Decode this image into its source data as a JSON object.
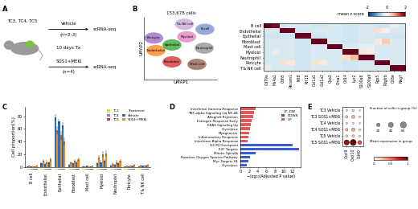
{
  "panel_labels": [
    "A",
    "B",
    "C",
    "D",
    "E"
  ],
  "diagram": {
    "models": "TC3, TC4, TC5",
    "arms": [
      {
        "treatment": "Vehicle",
        "n": "(n=2-3)",
        "readout": "scRNA-seq"
      },
      {
        "treatment": "SOS1+MEKi",
        "n": "(n=4)",
        "readout": "scRNA-seq"
      }
    ],
    "duration": "10 days Tx"
  },
  "chart_data": [
    {
      "type": "scatter",
      "title": "153,678 cells",
      "x_label": "UMAP1",
      "y_label": "UMAP2",
      "tick_labels": false,
      "xlim": [
        0,
        10
      ],
      "ylim": [
        0,
        10
      ],
      "clusters": [
        {
          "name": "T & NK cell",
          "color": "#c9a3d6",
          "x": 5.5,
          "y": 8.8
        },
        {
          "name": "B-cell",
          "color": "#6f8fc9",
          "x": 8.3,
          "y": 8.0
        },
        {
          "name": "Myeloid",
          "color": "#e377c2",
          "x": 5.8,
          "y": 6.8
        },
        {
          "name": "Neutrophil",
          "color": "#8c8c8c",
          "x": 8.2,
          "y": 5.0
        },
        {
          "name": "Mast cell",
          "color": "#8c564b",
          "x": 7.2,
          "y": 2.4
        },
        {
          "name": "Fibroblast",
          "color": "#d62728",
          "x": 3.8,
          "y": 2.8
        },
        {
          "name": "Endothelial",
          "color": "#ff7f0e",
          "x": 1.6,
          "y": 4.6
        },
        {
          "name": "Pericyte",
          "color": "#9467bd",
          "x": 1.3,
          "y": 6.6
        },
        {
          "name": "Epithelial",
          "color": "#2ca02c",
          "x": 3.8,
          "y": 5.5
        }
      ]
    },
    {
      "type": "heatmap",
      "rows": [
        "B cell",
        "Endothelial",
        "Epithelial",
        "Fibroblast",
        "Mast cell",
        "Myeloid",
        "Neutrophil",
        "Pericyte",
        "T & NK cell"
      ],
      "columns": [
        "Cd79a",
        "Ms4a1",
        "Cdh5",
        "Pecam1",
        "Krt8",
        "Krt18",
        "Col1a1",
        "Col1a2",
        "Cpa3",
        "Cma1",
        "Cd14",
        "Lyz2",
        "S100a8",
        "S100a9",
        "Rgs5",
        "Pdgfrb",
        "Cd3e",
        "Nkg7"
      ],
      "values": [
        [
          2.0,
          1.9,
          -0.4,
          -0.3,
          -0.3,
          -0.3,
          -0.4,
          -0.4,
          -0.3,
          -0.3,
          -0.4,
          -0.4,
          -0.3,
          -0.3,
          -0.4,
          -0.4,
          -0.2,
          -0.3
        ],
        [
          -0.3,
          -0.3,
          2.1,
          2.0,
          -0.4,
          -0.4,
          -0.3,
          -0.3,
          -0.3,
          -0.3,
          -0.4,
          -0.4,
          -0.3,
          -0.3,
          0.3,
          0.1,
          -0.3,
          -0.3
        ],
        [
          -0.4,
          -0.4,
          -0.4,
          -0.4,
          2.2,
          2.1,
          -0.4,
          -0.4,
          -0.3,
          -0.3,
          -0.4,
          -0.4,
          -0.3,
          -0.3,
          -0.4,
          -0.4,
          -0.4,
          -0.4
        ],
        [
          -0.3,
          -0.3,
          -0.3,
          -0.3,
          -0.4,
          -0.4,
          2.2,
          2.1,
          -0.3,
          -0.3,
          -0.4,
          -0.4,
          -0.3,
          -0.3,
          0.2,
          0.5,
          -0.3,
          -0.3
        ],
        [
          -0.3,
          -0.3,
          -0.3,
          -0.3,
          -0.4,
          -0.4,
          -0.3,
          -0.3,
          2.3,
          2.2,
          -0.3,
          -0.3,
          -0.2,
          -0.2,
          -0.3,
          -0.3,
          -0.3,
          -0.3
        ],
        [
          -0.3,
          -0.2,
          -0.3,
          -0.3,
          -0.4,
          -0.4,
          -0.3,
          -0.3,
          -0.3,
          -0.3,
          2.0,
          2.1,
          0.2,
          0.1,
          -0.3,
          -0.3,
          -0.3,
          -0.3
        ],
        [
          -0.3,
          -0.3,
          -0.3,
          -0.3,
          -0.4,
          -0.4,
          -0.3,
          -0.3,
          -0.3,
          -0.3,
          0.4,
          0.6,
          2.2,
          2.2,
          -0.3,
          -0.3,
          -0.3,
          -0.3
        ],
        [
          -0.3,
          -0.3,
          0.3,
          0.2,
          -0.4,
          -0.4,
          0.3,
          0.2,
          -0.3,
          -0.3,
          -0.4,
          -0.4,
          -0.3,
          -0.3,
          2.2,
          2.1,
          -0.3,
          -0.3
        ],
        [
          -0.2,
          -0.3,
          -0.3,
          -0.3,
          -0.4,
          -0.4,
          -0.3,
          -0.3,
          -0.3,
          -0.3,
          -0.4,
          -0.4,
          -0.3,
          -0.3,
          -0.3,
          -0.3,
          2.1,
          2.2
        ]
      ],
      "colorbar": {
        "label": "mean z score",
        "range": [
          -2,
          2
        ],
        "ticks": [
          -2,
          0,
          2
        ]
      }
    },
    {
      "type": "bar",
      "y_label": "Cell proportion(%)",
      "categories": [
        "B cell",
        "Endothelial",
        "Epithelial",
        "Fibroblast",
        "Mast cell",
        "Myeloid",
        "Neutrophil",
        "Pericyte",
        "T & NK cell"
      ],
      "ylim": [
        0,
        95
      ],
      "yticks": [
        0,
        20,
        40,
        60,
        80
      ],
      "legend": "upper right",
      "models": [
        {
          "name": "TC3",
          "color": "#e8d44d"
        },
        {
          "name": "TC4",
          "color": "#9a7fc0"
        },
        {
          "name": "TC5",
          "color": "#a0522d"
        }
      ],
      "treatments": {
        "title": "Treatment",
        "items": [
          {
            "name": "Vehicle",
            "color": "#2f6db5"
          },
          {
            "name": "SOS1+MEKi",
            "color": "#e8892a"
          }
        ]
      },
      "series": [
        {
          "model": "TC3",
          "treatment": "Vehicle",
          "values": [
            1.0,
            6,
            78,
            4,
            1.5,
            6,
            3,
            1.0,
            1.5
          ],
          "errors": [
            0.5,
            2,
            5,
            1,
            0.5,
            2,
            1,
            0.3,
            0.5
          ]
        },
        {
          "model": "TC3",
          "treatment": "SOS1+MEKi",
          "values": [
            2.0,
            10,
            58,
            7,
            1.0,
            15,
            5,
            2.0,
            2.5
          ],
          "errors": [
            1,
            3,
            6,
            2,
            0.5,
            4,
            2,
            0.8,
            1
          ]
        },
        {
          "model": "TC4",
          "treatment": "Vehicle",
          "values": [
            0.8,
            5,
            72,
            6,
            2.0,
            8,
            4,
            1.5,
            2.0
          ],
          "errors": [
            0.4,
            2,
            4,
            2,
            0.8,
            3,
            1,
            0.5,
            0.8
          ]
        },
        {
          "model": "TC4",
          "treatment": "SOS1+MEKi",
          "values": [
            1.5,
            8,
            50,
            10,
            1.5,
            20,
            8,
            3.0,
            3.0
          ],
          "errors": [
            0.6,
            3,
            7,
            3,
            0.6,
            5,
            3,
            1,
            1
          ]
        },
        {
          "model": "TC5",
          "treatment": "Vehicle",
          "values": [
            1.2,
            7,
            65,
            8,
            1.0,
            10,
            6,
            2.0,
            2.5
          ],
          "errors": [
            0.5,
            2,
            5,
            2,
            0.4,
            3,
            2,
            0.6,
            0.8
          ]
        },
        {
          "model": "TC5",
          "treatment": "SOS1+MEKi",
          "values": [
            3.0,
            12,
            40,
            12,
            2.0,
            22,
            10,
            3.5,
            4.0
          ],
          "errors": [
            1,
            3,
            6,
            3,
            0.8,
            5,
            3,
            1,
            1.2
          ]
        }
      ]
    },
    {
      "type": "bar",
      "orientation": "horizontal",
      "x_label": "−log₁₀(Adjusted P value)",
      "categories": [
        "Interferon Gamma Response",
        "TNF-alpha Signaling via NF-kB",
        "Allograft Rejection",
        "Estrogen Response Early",
        "KRAS Signaling Up",
        "Glycolysis",
        "Myogenesis",
        "Inflammatory Response",
        "Interferon Alpha Response",
        "G2-M Checkpoint",
        "E2F Targets",
        "Mitotic Spindle",
        "Reactive Oxygen Species Pathway",
        "Myc Targets V1",
        "Glycolysis"
      ],
      "xlim": [
        0,
        14
      ],
      "xticks": [
        0,
        2,
        4,
        6,
        8,
        10,
        12
      ],
      "legend": "upper right",
      "legend_title": "UP_DW",
      "series": [
        {
          "name": "DOWN",
          "color": "#3b5bd6",
          "values": [
            null,
            null,
            null,
            null,
            null,
            null,
            null,
            null,
            null,
            12.0,
            13.5,
            3.5,
            2.2,
            1.8,
            1.5
          ]
        },
        {
          "name": "UP",
          "color": "#e05a5a",
          "values": [
            3.6,
            3.1,
            3.0,
            2.6,
            2.4,
            2.2,
            2.0,
            1.9,
            1.7,
            null,
            null,
            null,
            null,
            null,
            null
          ]
        }
      ]
    },
    {
      "type": "dot",
      "rows": [
        "TC3 Vehicle",
        "TC3 SOS1+MEKi",
        "TC4 Vehicle",
        "TC4 SOS1+MEKi",
        "TC5 Vehicle",
        "TC5 SOS1+MEKi"
      ],
      "columns": [
        "Cxcl9",
        "Cxcl10",
        "Cd40"
      ],
      "fraction": [
        [
          5,
          8,
          3
        ],
        [
          10,
          15,
          5
        ],
        [
          5,
          5,
          3
        ],
        [
          12,
          18,
          6
        ],
        [
          8,
          10,
          5
        ],
        [
          45,
          60,
          25
        ]
      ],
      "mean_expression": [
        [
          0.1,
          0.15,
          0.05
        ],
        [
          0.2,
          0.25,
          0.1
        ],
        [
          0.1,
          0.1,
          0.05
        ],
        [
          0.25,
          0.3,
          0.1
        ],
        [
          0.15,
          0.2,
          0.1
        ],
        [
          0.9,
          1.0,
          0.6
        ]
      ],
      "size_legend": {
        "title": "Fraction of cells in group (%)",
        "values": [
          20,
          40,
          60
        ]
      },
      "colorbar": {
        "label": "Mean expression in group",
        "range": [
          0,
          1
        ],
        "ticks": [
          0,
          0.5,
          1
        ]
      }
    }
  ]
}
